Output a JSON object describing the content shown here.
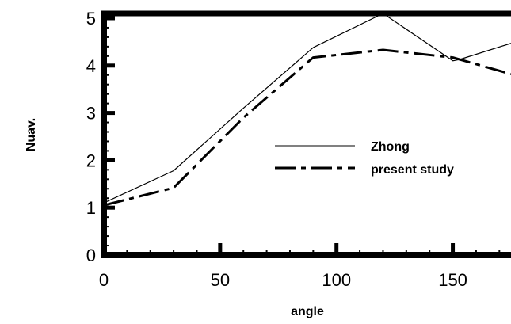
{
  "chart_data": {
    "type": "line",
    "title": "",
    "xlabel": "angle",
    "ylabel": "Nuav.",
    "xlim": [
      0,
      175
    ],
    "ylim": [
      0,
      5.1
    ],
    "x_ticks": [
      0,
      50,
      100,
      150
    ],
    "y_ticks": [
      0,
      1,
      2,
      3,
      4,
      5
    ],
    "grid": false,
    "legend_position": "middle-right",
    "series": [
      {
        "name": "Zhong",
        "line_style": "solid-thin",
        "color": "#000000",
        "x": [
          0,
          30,
          60,
          90,
          120,
          150,
          153,
          175
        ],
        "y": [
          1.1,
          1.78,
          3.1,
          4.38,
          5.1,
          4.1,
          4.13,
          4.47
        ]
      },
      {
        "name": "present study",
        "line_style": "dash-dot-thick",
        "color": "#000000",
        "x": [
          0,
          30,
          60,
          90,
          120,
          150,
          175
        ],
        "y": [
          1.05,
          1.42,
          2.9,
          4.17,
          4.33,
          4.17,
          3.82
        ]
      }
    ]
  }
}
